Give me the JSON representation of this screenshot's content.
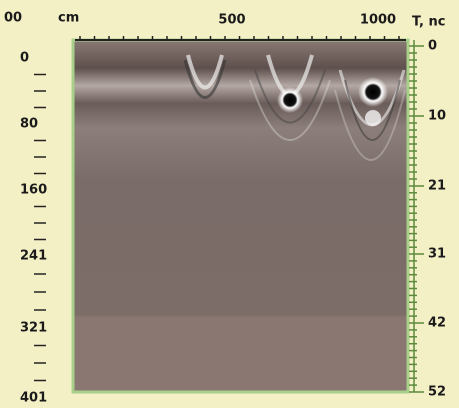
{
  "top_axis": {
    "labels": [
      "cm",
      "500",
      "1000",
      "T, nc"
    ]
  },
  "left_axis": {
    "labels": [
      "00",
      "0",
      "80",
      "160",
      "241",
      "321",
      "401"
    ]
  },
  "right_axis": {
    "labels": [
      "0",
      "10",
      "21",
      "31",
      "42",
      "52"
    ]
  }
}
